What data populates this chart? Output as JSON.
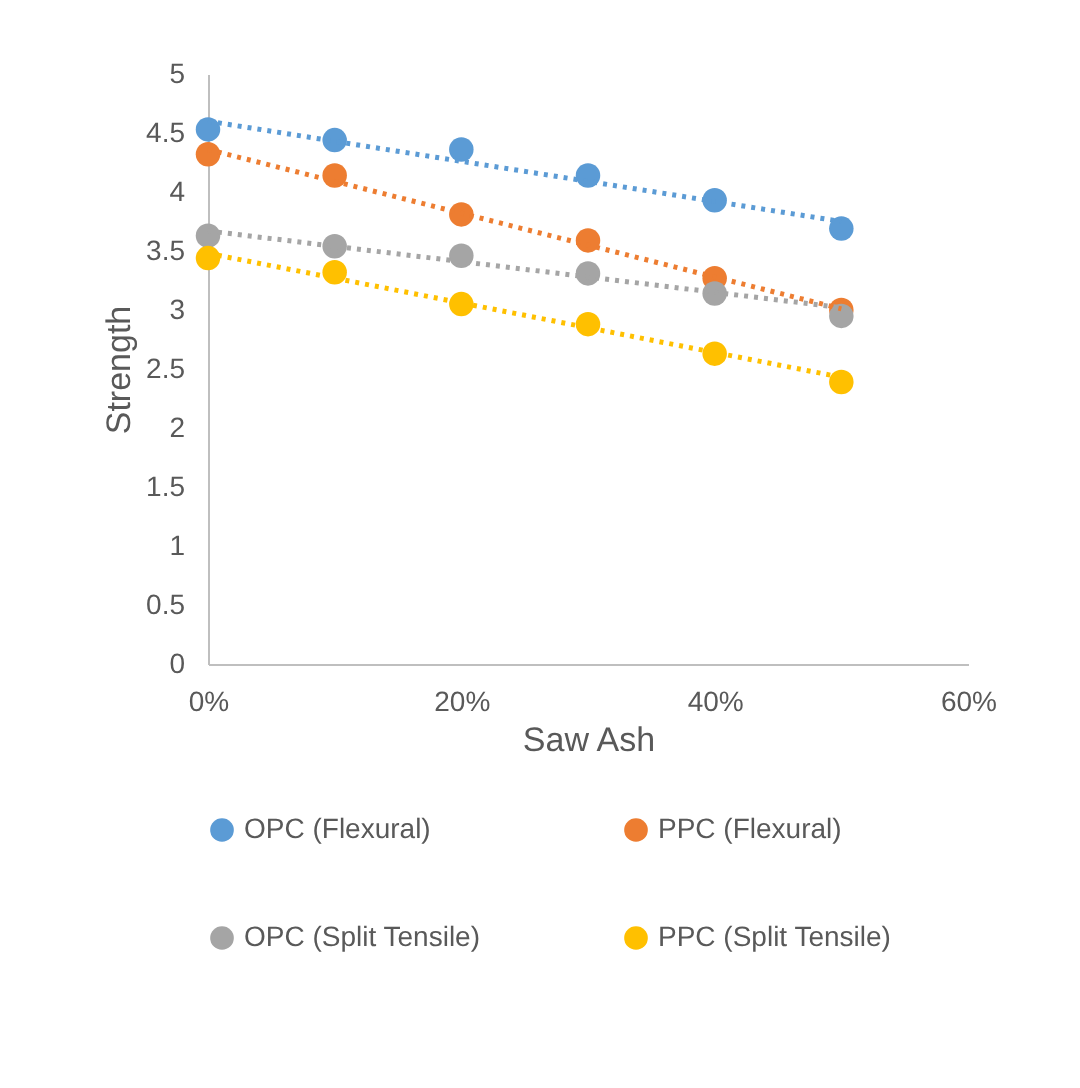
{
  "chart_data": {
    "type": "scatter",
    "xlabel": "Saw Ash",
    "ylabel": "Strength",
    "x": [
      0,
      10,
      20,
      30,
      40,
      50
    ],
    "xlim": [
      0,
      60
    ],
    "xticks": [
      {
        "value": 0,
        "label": "0%"
      },
      {
        "value": 20,
        "label": "20%"
      },
      {
        "value": 40,
        "label": "40%"
      },
      {
        "value": 60,
        "label": "60%"
      }
    ],
    "ylim": [
      0,
      5
    ],
    "yticks": [
      0,
      0.5,
      1,
      1.5,
      2,
      2.5,
      3,
      3.5,
      4,
      4.5,
      5
    ],
    "grid": false,
    "legend": "bottom",
    "series": [
      {
        "name": "OPC (Flexural)",
        "color": "#5b9bd5",
        "marker": "circle",
        "values": [
          4.53,
          4.44,
          4.36,
          4.14,
          3.93,
          3.69
        ]
      },
      {
        "name": "PPC (Flexural)",
        "color": "#ed7d31",
        "marker": "circle",
        "values": [
          4.32,
          4.14,
          3.81,
          3.59,
          3.27,
          3.0
        ]
      },
      {
        "name": "OPC (Split Tensile)",
        "color": "#a5a5a5",
        "marker": "circle",
        "values": [
          3.63,
          3.54,
          3.46,
          3.31,
          3.14,
          2.95
        ]
      },
      {
        "name": "PPC (Split Tensile)",
        "color": "#ffc000",
        "marker": "circle",
        "values": [
          3.44,
          3.32,
          3.05,
          2.88,
          2.63,
          2.39
        ]
      },
      {
        "type": "line",
        "line_style": "dotted",
        "color": "#5b9bd5",
        "x": [
          0,
          10,
          20,
          30,
          40,
          50
        ],
        "values": [
          4.6,
          4.43,
          4.26,
          4.09,
          3.92,
          3.75
        ]
      },
      {
        "type": "line",
        "line_style": "dotted",
        "color": "#ed7d31",
        "x": [
          0,
          10,
          20,
          30,
          40,
          50
        ],
        "values": [
          4.36,
          4.09,
          3.82,
          3.55,
          3.28,
          3.01
        ]
      },
      {
        "type": "line",
        "line_style": "dotted",
        "color": "#a5a5a5",
        "x": [
          0,
          10,
          20,
          30,
          40,
          50
        ],
        "values": [
          3.67,
          3.54,
          3.41,
          3.28,
          3.15,
          3.02
        ]
      },
      {
        "type": "line",
        "line_style": "dotted",
        "color": "#ffc000",
        "x": [
          0,
          10,
          20,
          30,
          40,
          50
        ],
        "values": [
          3.48,
          3.27,
          3.06,
          2.85,
          2.64,
          2.43
        ]
      }
    ]
  }
}
